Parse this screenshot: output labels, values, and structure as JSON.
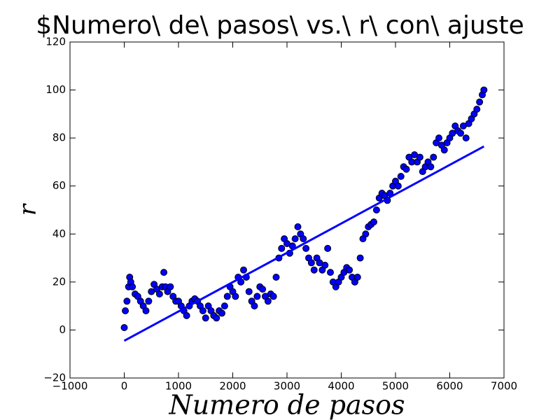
{
  "chart_data": {
    "type": "scatter",
    "title": "$Numero\\ de\\ pasos\\ vs.\\ r\\ con\\ ajuste",
    "x_label": "Numero de pasos",
    "y_label": "r",
    "xlim": [
      -1000,
      7000
    ],
    "ylim": [
      -20,
      120
    ],
    "xticks": [
      {
        "value": -1000,
        "label": "−1000"
      },
      0,
      1000,
      2000,
      3000,
      4000,
      5000,
      6000,
      7000
    ],
    "yticks": [
      {
        "value": -20,
        "label": "−20"
      },
      0,
      20,
      40,
      60,
      80,
      100,
      120
    ],
    "series": [
      {
        "type": "scatter",
        "color": "#0000ff",
        "edge_color": "#000000",
        "x": [
          0,
          20,
          50,
          80,
          100,
          120,
          150,
          200,
          250,
          300,
          350,
          400,
          450,
          500,
          550,
          600,
          650,
          700,
          730,
          760,
          800,
          850,
          900,
          950,
          1000,
          1050,
          1100,
          1150,
          1200,
          1250,
          1300,
          1350,
          1400,
          1450,
          1500,
          1550,
          1600,
          1650,
          1700,
          1750,
          1800,
          1850,
          1900,
          1950,
          2000,
          2050,
          2100,
          2150,
          2200,
          2250,
          2300,
          2350,
          2400,
          2450,
          2500,
          2550,
          2600,
          2650,
          2700,
          2750,
          2800,
          2850,
          2900,
          2950,
          3000,
          3050,
          3100,
          3150,
          3200,
          3250,
          3300,
          3350,
          3400,
          3450,
          3500,
          3550,
          3600,
          3650,
          3700,
          3750,
          3800,
          3850,
          3900,
          3950,
          4000,
          4050,
          4100,
          4150,
          4200,
          4250,
          4300,
          4350,
          4400,
          4450,
          4500,
          4550,
          4600,
          4650,
          4700,
          4750,
          4800,
          4850,
          4900,
          4950,
          5000,
          5050,
          5100,
          5150,
          5200,
          5250,
          5300,
          5350,
          5400,
          5450,
          5500,
          5550,
          5600,
          5650,
          5700,
          5750,
          5800,
          5850,
          5900,
          5950,
          6000,
          6050,
          6100,
          6150,
          6200,
          6250,
          6300,
          6350,
          6400,
          6450,
          6500,
          6550,
          6600,
          6630
        ],
        "y": [
          1,
          8,
          12,
          18,
          22,
          20,
          18,
          15,
          14,
          12,
          10,
          8,
          12,
          16,
          19,
          17,
          15,
          18,
          24,
          18,
          16,
          18,
          14,
          12,
          12,
          10,
          8,
          6,
          10,
          12,
          13,
          12,
          10,
          8,
          5,
          10,
          8,
          6,
          5,
          8,
          7,
          10,
          14,
          18,
          16,
          14,
          22,
          20,
          25,
          22,
          16,
          12,
          10,
          14,
          18,
          17,
          14,
          12,
          15,
          14,
          22,
          30,
          34,
          38,
          36,
          32,
          35,
          38,
          43,
          40,
          38,
          34,
          30,
          28,
          25,
          30,
          28,
          25,
          27,
          34,
          24,
          20,
          18,
          20,
          22,
          24,
          26,
          25,
          22,
          20,
          22,
          30,
          38,
          40,
          43,
          44,
          45,
          50,
          55,
          57,
          56,
          54,
          57,
          60,
          62,
          60,
          64,
          68,
          67,
          72,
          70,
          73,
          70,
          72,
          66,
          68,
          70,
          68,
          72,
          78,
          80,
          77,
          75,
          78,
          80,
          82,
          85,
          83,
          82,
          85,
          80,
          86,
          88,
          90,
          92,
          95,
          98,
          100
        ]
      },
      {
        "type": "line",
        "color": "#0000ff",
        "x": [
          0,
          6630
        ],
        "y": [
          -4.5,
          76.5
        ]
      }
    ]
  }
}
